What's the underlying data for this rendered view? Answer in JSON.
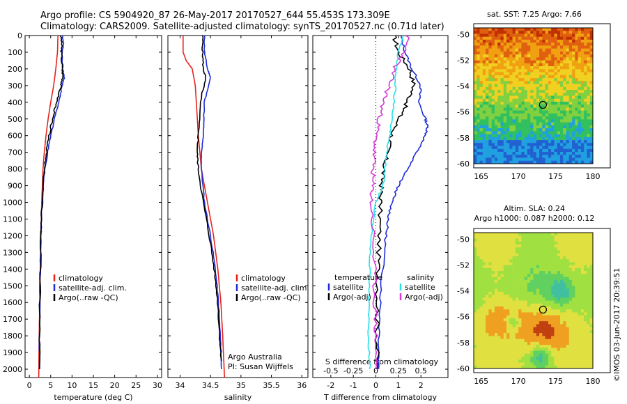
{
  "header": {
    "line1": "Argo profile: CS 5904920_87 26-May-2017 20170527_644 55.453S 173.309E",
    "line2": "Climatology: CARS2009. Satellite-adjusted climatology: synTS_20170527.nc (0.71d later)"
  },
  "colors": {
    "climatology": "#e8221b",
    "satellite": "#1f2bd6",
    "argo": "#000000",
    "sat_sal": "#27e0e8",
    "argo_sal": "#d63ad6"
  },
  "chart_data": [
    {
      "type": "line",
      "name": "temperature",
      "xlabel": "temperature (deg C)",
      "ylabel": "",
      "xlim": [
        -1,
        31
      ],
      "ylim": [
        2050,
        0
      ],
      "xticks": [
        0,
        5,
        10,
        15,
        20,
        25,
        30
      ],
      "yticks": [
        0,
        100,
        200,
        300,
        400,
        500,
        600,
        700,
        800,
        900,
        1000,
        1100,
        1200,
        1300,
        1400,
        1500,
        1600,
        1700,
        1800,
        1900,
        2000
      ],
      "legend": [
        "climatology",
        "satellite-adj. clim.",
        "Argo(..raw -QC)"
      ],
      "legend_position": "lower-right",
      "series": [
        {
          "name": "climatology",
          "color": "climatology",
          "depth": [
            0,
            100,
            200,
            300,
            400,
            500,
            600,
            700,
            800,
            1000,
            1200,
            1500,
            1800,
            2050
          ],
          "values": [
            6.7,
            6.6,
            6.2,
            5.7,
            5.0,
            4.4,
            3.9,
            3.5,
            3.2,
            2.9,
            2.7,
            2.5,
            2.3,
            2.2
          ]
        },
        {
          "name": "satellite-adj. clim.",
          "color": "satellite",
          "depth": [
            0,
            50,
            100,
            200,
            250,
            300,
            400,
            500,
            600,
            700,
            800,
            1000,
            1200,
            1500,
            1800,
            2000
          ],
          "values": [
            7.8,
            8.0,
            7.7,
            7.8,
            8.2,
            7.7,
            6.9,
            5.9,
            5.0,
            4.3,
            3.6,
            3.0,
            2.7,
            2.5,
            2.4,
            2.4
          ]
        },
        {
          "name": "Argo(..raw -QC)",
          "color": "argo",
          "depth": [
            0,
            50,
            100,
            200,
            250,
            300,
            400,
            500,
            600,
            700,
            800,
            1000,
            1200,
            1500,
            1800,
            2000
          ],
          "values": [
            7.4,
            7.6,
            7.5,
            7.7,
            7.9,
            7.4,
            6.4,
            5.4,
            4.6,
            4.0,
            3.5,
            3.0,
            2.7,
            2.5,
            2.4,
            2.4
          ]
        }
      ]
    },
    {
      "type": "line",
      "name": "salinity",
      "xlabel": "salinity",
      "ylabel": "",
      "xlim": [
        33.8,
        36.1
      ],
      "ylim": [
        2050,
        0
      ],
      "xticks": [
        34,
        34.5,
        35,
        35.5,
        36
      ],
      "legend": [
        "climatology",
        "satellite-adj. clim.",
        "Argo(..raw -QC)"
      ],
      "legend_position": "lower-right",
      "annotation": [
        "Argo Australia",
        "PI: Susan Wijffels"
      ],
      "series": [
        {
          "name": "climatology",
          "color": "climatology",
          "depth": [
            0,
            100,
            150,
            200,
            300,
            600,
            800,
            1000,
            1200,
            1400,
            1600,
            1800,
            2050
          ],
          "values": [
            34.05,
            34.05,
            34.1,
            34.2,
            34.25,
            34.3,
            34.35,
            34.45,
            34.55,
            34.62,
            34.67,
            34.7,
            34.73
          ]
        },
        {
          "name": "satellite-adj. clim.",
          "color": "satellite",
          "depth": [
            0,
            100,
            200,
            250,
            400,
            600,
            700,
            800,
            1000,
            1200,
            1400,
            1600,
            1800,
            2000
          ],
          "values": [
            34.4,
            34.4,
            34.45,
            34.5,
            34.4,
            34.38,
            34.35,
            34.35,
            34.4,
            34.5,
            34.58,
            34.63,
            34.66,
            34.68
          ]
        },
        {
          "name": "Argo(..raw -QC)",
          "color": "argo",
          "depth": [
            0,
            100,
            200,
            250,
            400,
            600,
            700,
            800,
            1000,
            1200,
            1400,
            1600,
            1800,
            1950
          ],
          "values": [
            34.37,
            34.37,
            34.38,
            34.42,
            34.33,
            34.3,
            34.28,
            34.3,
            34.38,
            34.48,
            34.56,
            34.62,
            34.65,
            34.68
          ]
        }
      ]
    },
    {
      "type": "line",
      "name": "difference",
      "xlabel": "T difference from climatology",
      "xlabel_top": "S difference from climatology",
      "xlim": [
        -2.8,
        3.2
      ],
      "ylim": [
        2050,
        0
      ],
      "xticks": [
        -2,
        -1,
        0,
        1,
        2
      ],
      "sticks": [
        "-0.5",
        "-0.25",
        "0",
        "0.25",
        "0.5"
      ],
      "legend_temperature": {
        "title": "temperature",
        "items": [
          "satellite",
          "Argo(-adj)"
        ]
      },
      "legend_salinity": {
        "title": "salinity",
        "items": [
          "satellite",
          "Argo(-adj)"
        ]
      },
      "series": [
        {
          "name": "temperature satellite",
          "color": "satellite",
          "depth": [
            0,
            100,
            200,
            300,
            400,
            500,
            550,
            600,
            700,
            800,
            900,
            1000,
            1100,
            1200,
            1400,
            1600,
            1800,
            2000
          ],
          "values": [
            1.1,
            1.3,
            1.6,
            2.0,
            1.9,
            2.2,
            2.3,
            2.2,
            1.8,
            1.4,
            1.0,
            0.7,
            0.55,
            0.45,
            0.3,
            0.2,
            0.15,
            0.12
          ]
        },
        {
          "name": "temperature Argo(-adj)",
          "color": "argo",
          "depth": [
            0,
            100,
            200,
            300,
            400,
            500,
            600,
            700,
            800,
            900,
            1000,
            1200,
            1400,
            1600,
            1800,
            2000
          ],
          "values": [
            0.8,
            1.0,
            1.5,
            1.7,
            1.4,
            1.0,
            0.7,
            0.5,
            0.35,
            0.25,
            0.2,
            0.15,
            0.1,
            0.08,
            0.06,
            0.05
          ]
        },
        {
          "name": "salinity satellite",
          "color": "sat_sal",
          "depth": [
            0,
            100,
            200,
            300,
            400,
            500,
            600,
            700,
            800,
            900,
            1000,
            1200,
            1400,
            1600,
            1800,
            2000
          ],
          "values": [
            0.3,
            0.25,
            0.22,
            0.22,
            0.2,
            0.18,
            0.15,
            0.12,
            0.1,
            0.08,
            0.0,
            -0.05,
            -0.07,
            -0.08,
            -0.08,
            -0.07
          ]
        },
        {
          "name": "salinity Argo(-adj)",
          "color": "argo_sal",
          "depth": [
            0,
            100,
            200,
            300,
            400,
            500,
            600,
            700,
            800,
            900,
            1000,
            1200,
            1400,
            1600,
            1800,
            2000
          ],
          "values": [
            0.35,
            0.32,
            0.2,
            0.15,
            0.08,
            0.04,
            0.0,
            -0.02,
            -0.03,
            -0.04,
            -0.05,
            -0.03,
            -0.02,
            -0.01,
            0.0,
            0.0
          ]
        }
      ]
    },
    {
      "type": "heatmap",
      "name": "sst_map",
      "title": "sat. SST: 7.25  Argo: 7.66",
      "xlim": [
        164,
        180
      ],
      "ylim": [
        -60,
        -49.5
      ],
      "xticks": [
        165,
        170,
        175,
        180
      ],
      "yticks": [
        -50,
        -52,
        -54,
        -56,
        -58,
        -60
      ],
      "marker": {
        "lon": 173.3,
        "lat": -55.45
      }
    },
    {
      "type": "heatmap",
      "name": "sla_map",
      "title": [
        "Altim. SLA: 0.24",
        "Argo h1000: 0.087 h2000: 0.12"
      ],
      "xlim": [
        164,
        180
      ],
      "ylim": [
        -60,
        -49.5
      ],
      "xticks": [
        165,
        170,
        175,
        180
      ],
      "yticks": [
        -50,
        -52,
        -54,
        -56,
        -58,
        -60
      ],
      "marker": {
        "lon": 173.3,
        "lat": -55.45
      }
    }
  ],
  "footer": {
    "credit": "©IMOS 03-Jun-2017 20:39:51"
  }
}
